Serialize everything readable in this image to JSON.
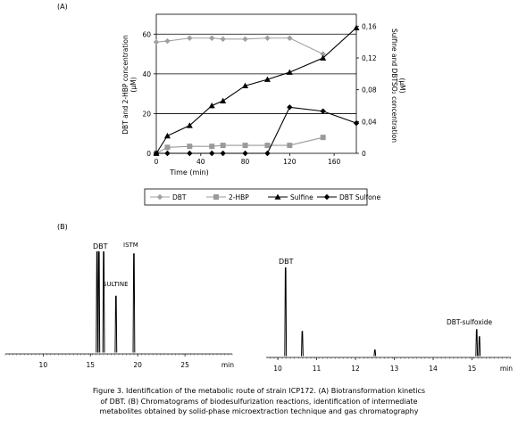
{
  "chart_data": [
    {
      "type": "line",
      "panel_label": "(A)",
      "xlabel": "Time (min)",
      "xlim": [
        0,
        180
      ],
      "x_ticks": [
        0,
        40,
        80,
        120,
        160
      ],
      "ylabel_left": [
        "DBT and 2-HBP concentration",
        "(µM)"
      ],
      "ylim_left": [
        0,
        70
      ],
      "y_ticks_left": [
        0,
        20,
        40,
        60
      ],
      "ylabel_right": [
        "Sulfine and DBTSO₂ concentration",
        "(µM)"
      ],
      "ylim_right": [
        0,
        0.175
      ],
      "y_ticks_right": [
        "0",
        "0,04",
        "0,08",
        "0,12",
        "0,16"
      ],
      "y_ticks_right_values": [
        0,
        0.04,
        0.08,
        0.12,
        0.16
      ],
      "grid": "horizontal",
      "legend_position": "bottom",
      "series": [
        {
          "name": "DBT",
          "axis": "left",
          "color": "#a0a0a0",
          "marker": "diamond",
          "x": [
            0,
            10,
            30,
            50,
            60,
            80,
            100,
            120,
            150
          ],
          "y": [
            56,
            56.5,
            58,
            58,
            57.5,
            57.5,
            58,
            58,
            50
          ]
        },
        {
          "name": "2-HBP",
          "axis": "left",
          "color": "#9a9a9a",
          "marker": "square",
          "x": [
            0,
            10,
            30,
            50,
            60,
            80,
            100,
            120,
            150
          ],
          "y": [
            0,
            3,
            3.5,
            3.5,
            4,
            4,
            4,
            4,
            8
          ]
        },
        {
          "name": "Sulfine",
          "axis": "right",
          "color": "#000000",
          "marker": "triangle",
          "x": [
            0,
            10,
            30,
            50,
            60,
            80,
            100,
            120,
            150,
            180
          ],
          "y": [
            0,
            0.022,
            0.035,
            0.06,
            0.066,
            0.085,
            0.093,
            0.102,
            0.12,
            0.158
          ]
        },
        {
          "name": "DBT Sulfone",
          "axis": "right",
          "color": "#000000",
          "marker": "diamond",
          "x": [
            0,
            10,
            30,
            50,
            60,
            80,
            100,
            120,
            150,
            180
          ],
          "y": [
            0,
            0,
            0,
            0,
            0,
            0,
            0,
            0.058,
            0.053,
            0.038
          ]
        }
      ]
    },
    {
      "type": "line",
      "panel_label": "(B)",
      "xlabel": "min",
      "xlim": [
        6,
        30
      ],
      "x_ticks": [
        10,
        15,
        20,
        25
      ],
      "annotations": [
        "DBT",
        "SULTINE",
        "ISTM"
      ],
      "peaks": [
        {
          "rt": 15.7,
          "height": 1.0
        },
        {
          "rt": 15.9,
          "height": 1.0
        },
        {
          "rt": 16.4,
          "height": 1.0
        },
        {
          "rt": 17.7,
          "height": 0.56
        },
        {
          "rt": 19.6,
          "height": 0.98
        }
      ]
    },
    {
      "type": "line",
      "xlabel": "min",
      "xlim": [
        9.7,
        16
      ],
      "x_ticks": [
        10,
        11,
        12,
        13,
        14,
        15
      ],
      "annotations": [
        "DBT",
        "DBT-sulfoxide"
      ],
      "peaks": [
        {
          "rt": 10.2,
          "height": 1.0
        },
        {
          "rt": 10.63,
          "height": 0.28
        },
        {
          "rt": 12.5,
          "height": 0.07
        },
        {
          "rt": 15.12,
          "height": 0.3
        },
        {
          "rt": 15.19,
          "height": 0.22
        }
      ]
    }
  ],
  "caption": [
    "Figure 3. Identification of the metabolic route of strain ICP172. (A) Biotransformation kinetics",
    "of DBT. (B) Chromatograms of biodesulfurization reactions, identification of intermediate",
    "metabolites obtained by solid-phase microextraction technique and gas chromatography"
  ]
}
